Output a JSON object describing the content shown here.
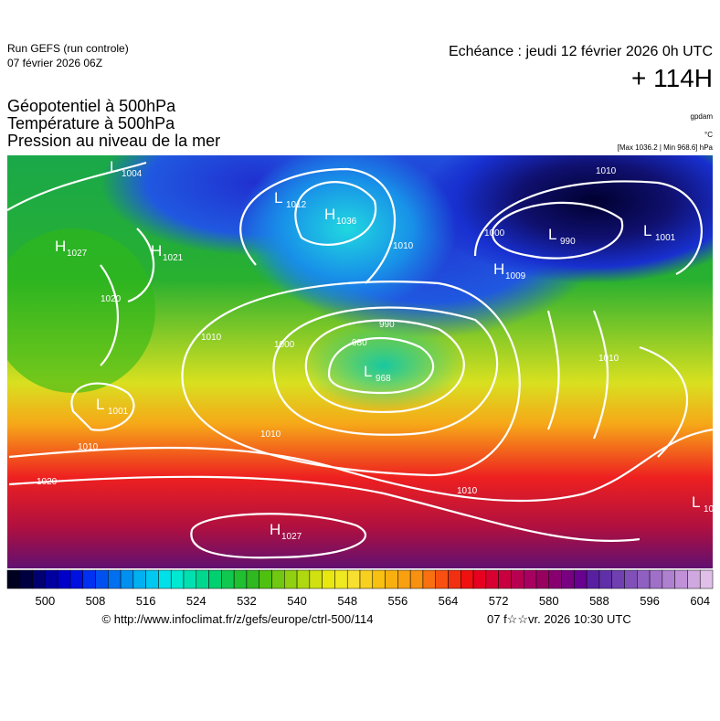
{
  "header": {
    "run": "Run GEFS (run controle)",
    "run_date": "07 février 2026 06Z",
    "valid": "Echéance : jeudi 12 février 2026 0h UTC",
    "lead": "+ 114H",
    "titles": [
      "Géopotentiel à 500hPa",
      "Température à 500hPa",
      "Pression au niveau de la mer"
    ],
    "units": [
      "gpdam",
      "°C",
      "[Max 1036.2 | Min 968.6] hPa"
    ]
  },
  "map": {
    "centers": [
      {
        "letter": "L",
        "value": "1004"
      },
      {
        "letter": "H",
        "value": "1027"
      },
      {
        "letter": "H",
        "value": "1021"
      },
      {
        "letter": "L",
        "value": "1012"
      },
      {
        "letter": "H",
        "value": "1036"
      },
      {
        "letter": "L",
        "value": "990"
      },
      {
        "letter": "L",
        "value": "1001"
      },
      {
        "letter": "H",
        "value": "1009"
      },
      {
        "letter": "L",
        "value": "968"
      },
      {
        "letter": "L",
        "value": "1001"
      },
      {
        "letter": "H",
        "value": "1027"
      },
      {
        "letter": "L",
        "value": "10"
      }
    ],
    "isobar_labels": [
      "1020",
      "1010",
      "1000",
      "990",
      "980",
      "1010",
      "1010",
      "1020",
      "1010",
      "1000",
      "1010",
      "1010",
      "1010"
    ]
  },
  "colorbar": {
    "ticks": [
      500,
      508,
      516,
      524,
      532,
      540,
      548,
      556,
      564,
      572,
      580,
      588,
      596,
      604
    ]
  },
  "footer": {
    "url": "© http://www.infoclimat.fr/z/gefs/europe/ctrl-500/114",
    "generated": "07 f☆☆vr. 2026 10:30 UTC"
  }
}
